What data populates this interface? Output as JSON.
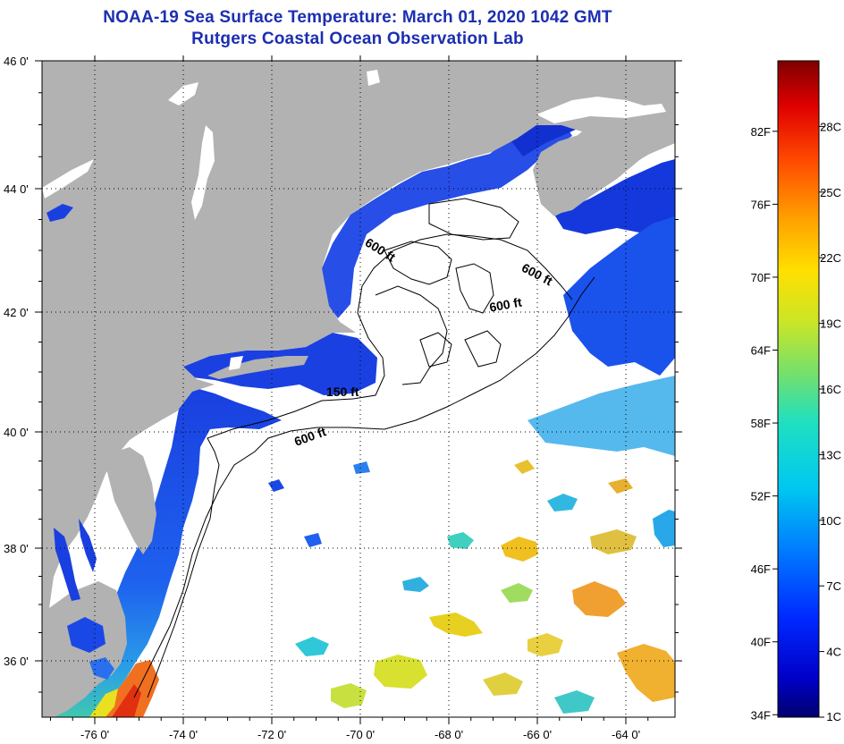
{
  "title": {
    "line1": "NOAA-19 Sea Surface Temperature:  March 01, 2020 1042 GMT",
    "line2": "Rutgers Coastal Ocean Observation Lab"
  },
  "axes": {
    "x_ticks": [
      {
        "value": -76,
        "label": "-76 0'"
      },
      {
        "value": -74,
        "label": "-74 0'"
      },
      {
        "value": -72,
        "label": "-72 0'"
      },
      {
        "value": -70,
        "label": "-70 0'"
      },
      {
        "value": -68,
        "label": "-68 0'"
      },
      {
        "value": -66,
        "label": "-66 0'"
      },
      {
        "value": -64,
        "label": "-64 0'"
      }
    ],
    "y_ticks": [
      {
        "value": 46,
        "label": "46 0'"
      },
      {
        "value": 44,
        "label": "44 0'"
      },
      {
        "value": 42,
        "label": "42 0'"
      },
      {
        "value": 40,
        "label": "40 0'"
      },
      {
        "value": 38,
        "label": "38 0'"
      },
      {
        "value": 36,
        "label": "36 0'"
      }
    ],
    "lon_range": [
      -77.0,
      -63.4
    ],
    "lat_range": [
      35.1,
      46.0
    ]
  },
  "contour_labels": [
    {
      "text": "600 ft",
      "lon": -69.6,
      "lat": 42.95
    },
    {
      "text": "600 ft",
      "lon": -66.05,
      "lat": 42.55
    },
    {
      "text": "600 ft",
      "lon": -66.7,
      "lat": 42.05
    },
    {
      "text": "150 ft",
      "lon": -70.4,
      "lat": 40.6
    },
    {
      "text": "600 ft",
      "lon": -71.1,
      "lat": 39.85
    }
  ],
  "colorbar": {
    "fahrenheit_labels": [
      "34F",
      "40F",
      "46F",
      "52F",
      "58F",
      "64F",
      "70F",
      "76F",
      "82F"
    ],
    "celsius_labels": [
      "1C",
      "4C",
      "7C",
      "10C",
      "13C",
      "16C",
      "19C",
      "22C",
      "25C",
      "28C"
    ],
    "min_c": 1,
    "max_c": 31
  },
  "colors": {
    "title": "#1c2fb0",
    "land": "#b2b2b2",
    "water_nodata": "#ffffff",
    "cold_water": "#1a3fe0"
  }
}
